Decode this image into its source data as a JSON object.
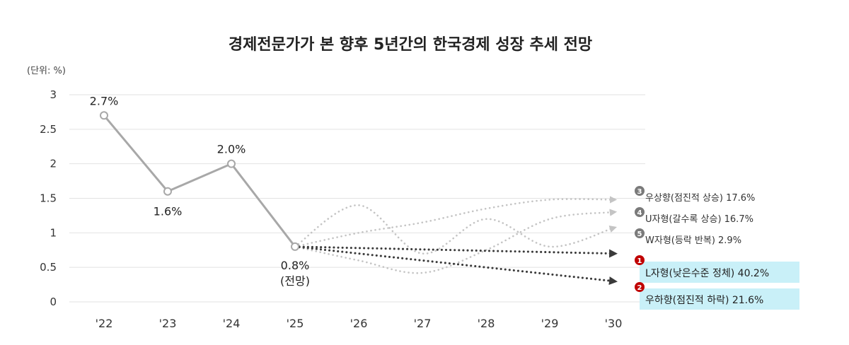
{
  "chart_data": {
    "type": "line",
    "title": "경제전문가가 본 향후 5년간의 한국경제 성장 추세 전망",
    "unit_label": "(단위: %)",
    "y_ticks": [
      "0",
      "0.5",
      "1",
      "1.5",
      "2",
      "2.5",
      "3"
    ],
    "ylim": [
      0,
      3
    ],
    "categories": [
      "'22",
      "'23",
      "'24",
      "'25",
      "'26",
      "'27",
      "'28",
      "'29",
      "'30"
    ],
    "grid": true,
    "history": {
      "x": [
        "'22",
        "'23",
        "'24",
        "'25"
      ],
      "values": [
        2.7,
        1.6,
        2.0,
        0.8
      ],
      "labels": [
        "2.7%",
        "1.6%",
        "2.0%",
        "0.8%"
      ],
      "forecast_note": "(전망)"
    },
    "scenarios": [
      {
        "rank": "3",
        "name": "우상향(점진적 상승) 17.6%",
        "x": [
          "'25",
          "'26",
          "'27",
          "'28",
          "'29",
          "'30"
        ],
        "values": [
          0.8,
          1.0,
          1.15,
          1.35,
          1.48,
          1.48
        ]
      },
      {
        "rank": "4",
        "name": "U자형(갈수록 상승) 16.7%",
        "x": [
          "'25",
          "'26",
          "'27",
          "'28",
          "'29",
          "'30"
        ],
        "values": [
          0.8,
          0.6,
          0.42,
          0.75,
          1.2,
          1.3
        ]
      },
      {
        "rank": "5",
        "name": "W자형(등락 반복) 2.9%",
        "x": [
          "'25",
          "'26",
          "'27",
          "'28",
          "'29",
          "'30"
        ],
        "values": [
          0.8,
          1.4,
          0.7,
          1.2,
          0.8,
          1.07
        ]
      },
      {
        "rank": "1",
        "name": "L자형(낮은수준 정체) 40.2%",
        "x": [
          "'25",
          "'30"
        ],
        "values": [
          0.8,
          0.7
        ]
      },
      {
        "rank": "2",
        "name": "우하향(점진적 하락) 21.6%",
        "x": [
          "'25",
          "'30"
        ],
        "values": [
          0.8,
          0.3
        ]
      }
    ],
    "colors": {
      "history": "#a8a8a8",
      "light_scenario": "#c4c4c4",
      "dark_scenario": "#3a3a3a",
      "top_marker": "#c00000",
      "other_marker": "#7a7a7a",
      "highlight": "#c9f0f8",
      "grid": "#e2e2e2"
    }
  }
}
